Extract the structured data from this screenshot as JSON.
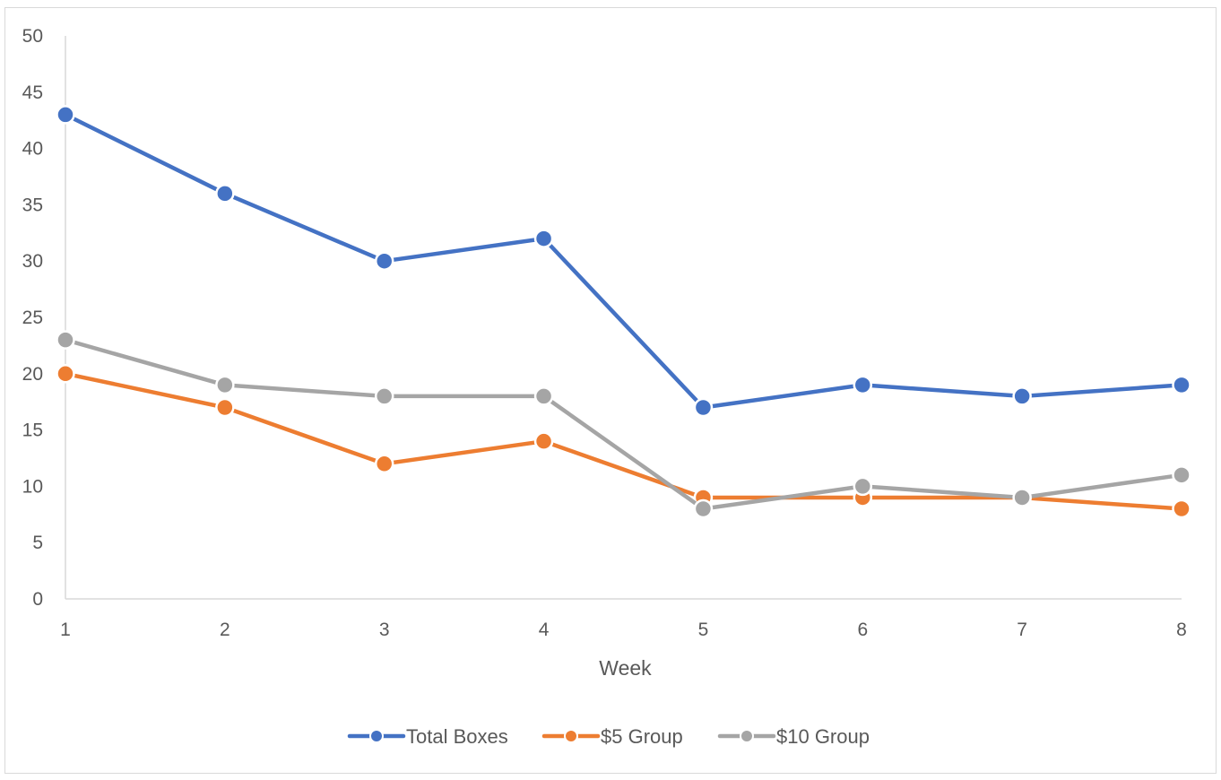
{
  "chart_data": {
    "type": "line",
    "title": "",
    "xlabel": "Week",
    "ylabel": "",
    "x": [
      1,
      2,
      3,
      4,
      5,
      6,
      7,
      8
    ],
    "x_tick_labels": [
      "1",
      "2",
      "3",
      "4",
      "5",
      "6",
      "7",
      "8"
    ],
    "ylim": [
      0,
      50
    ],
    "y_ticks": [
      0,
      5,
      10,
      15,
      20,
      25,
      30,
      35,
      40,
      45,
      50
    ],
    "y_tick_labels": [
      "0",
      "5",
      "10",
      "15",
      "20",
      "25",
      "30",
      "35",
      "40",
      "45",
      "50"
    ],
    "grid": false,
    "legend_position": "bottom",
    "markers": true,
    "series": [
      {
        "name": "Total Boxes",
        "color": "#4472C4",
        "values": [
          43,
          36,
          30,
          32,
          17,
          19,
          18,
          19
        ]
      },
      {
        "name": "$5 Group",
        "color": "#ED7D31",
        "values": [
          20,
          17,
          12,
          14,
          9,
          9,
          9,
          8
        ]
      },
      {
        "name": "$10 Group",
        "color": "#A5A5A5",
        "values": [
          23,
          19,
          18,
          18,
          8,
          10,
          9,
          11
        ]
      }
    ]
  }
}
